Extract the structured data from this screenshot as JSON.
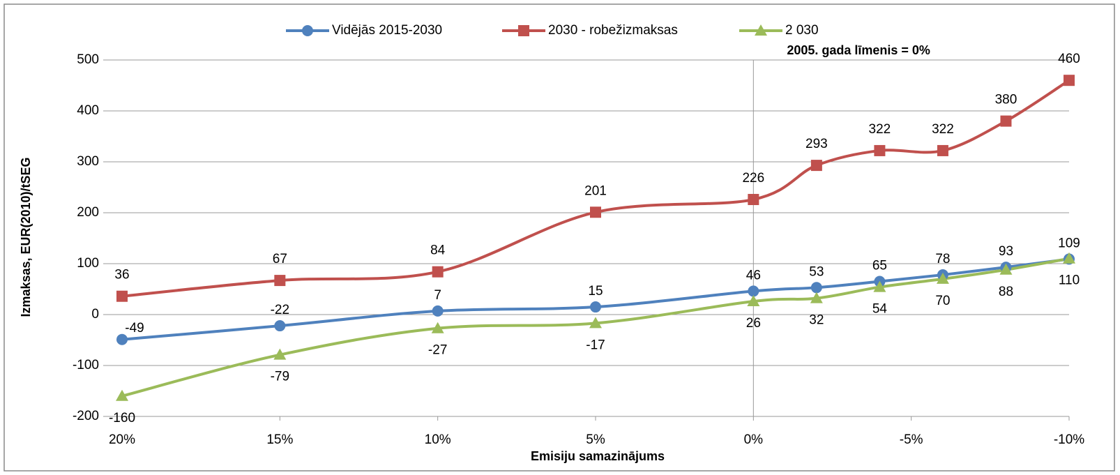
{
  "chart_data": {
    "type": "line",
    "xlabel": "Emisiju samazinājums",
    "ylabel": "Izmaksas, EUR(2010)/tSEG",
    "x": [
      20,
      15,
      10,
      5,
      0,
      -2,
      -4,
      -6,
      -8,
      -10
    ],
    "series": [
      {
        "name": "Vidējās 2015-2030",
        "color": "#4f81bd",
        "marker": "circle",
        "values": [
          -49,
          -22,
          7,
          15,
          46,
          53,
          65,
          78,
          93,
          109
        ]
      },
      {
        "name": "2030 - robežizmaksas",
        "color": "#c0504d",
        "marker": "square",
        "values": [
          36,
          67,
          84,
          201,
          226,
          293,
          322,
          322,
          380,
          460
        ]
      },
      {
        "name": "2 030",
        "color": "#9bbb59",
        "marker": "triangle",
        "values": [
          -160,
          -79,
          -27,
          -17,
          26,
          32,
          54,
          70,
          88,
          110
        ]
      }
    ],
    "xlim": [
      20,
      -10
    ],
    "xticks": [
      {
        "value": 20,
        "label": "20%"
      },
      {
        "value": 15,
        "label": "15%"
      },
      {
        "value": 10,
        "label": "10%"
      },
      {
        "value": 5,
        "label": "5%"
      },
      {
        "value": 0,
        "label": "0%"
      },
      {
        "value": -5,
        "label": "-5%"
      },
      {
        "value": -10,
        "label": "-10%"
      }
    ],
    "ylim": [
      -200,
      500
    ],
    "yticks": [
      -200,
      -100,
      0,
      100,
      200,
      300,
      400,
      500
    ],
    "grid": true,
    "smooth": true,
    "legend": "top",
    "annotations": [
      {
        "text": "2005. gada līmenis = 0%",
        "x": 0
      }
    ]
  }
}
